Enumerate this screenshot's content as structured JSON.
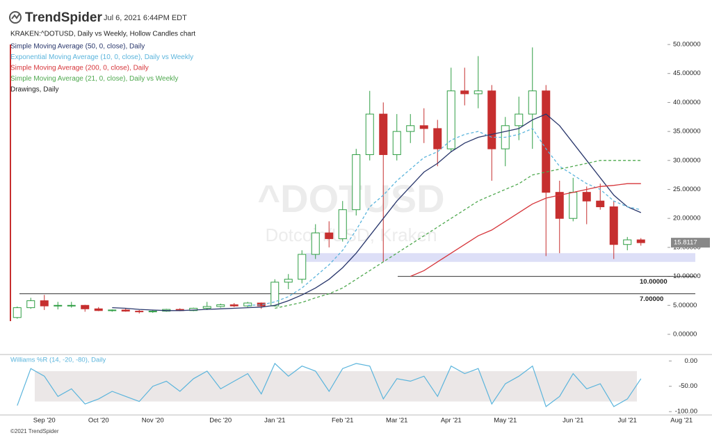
{
  "header": {
    "brand": "TrendSpider",
    "timestamp": "Jul 6, 2021 6:44PM EDT",
    "footer": "©2021 TrendSpider"
  },
  "chart_data": {
    "type": "candlestick",
    "title": "KRAKEN:^DOTUSD, Daily vs Weekly, Hollow Candles chart",
    "watermark": "^DOTUSD",
    "watermark_subtitle": "Dotcoin/USD, Kraken",
    "categories": [
      null,
      null,
      "Sep '20",
      null,
      null,
      null,
      "Oct '20",
      null,
      null,
      null,
      "Nov '20",
      null,
      null,
      null,
      null,
      "Dec '20",
      null,
      null,
      null,
      "Jan '21",
      null,
      null,
      null,
      null,
      "Feb '21",
      null,
      null,
      null,
      "Mar '21",
      null,
      null,
      null,
      "Apr '21",
      null,
      null,
      null,
      "May '21",
      null,
      null,
      null,
      null,
      "Jun '21",
      null,
      null,
      null,
      "Jul '21",
      null,
      null,
      null,
      "Aug '21"
    ],
    "open": [
      2.9,
      4.6,
      5.8,
      4.9,
      5.0,
      5.0,
      4.4,
      4.1,
      4.2,
      4.0,
      3.9,
      4.0,
      4.3,
      4.1,
      4.5,
      4.8,
      5.1,
      4.9,
      5.4,
      4.9,
      9.0,
      9.5,
      13.8,
      17.5,
      16.5,
      21.5,
      31.0,
      38.0,
      31.0,
      35.0,
      36.0,
      35.5,
      32.0,
      42.0,
      41.5,
      42.0,
      32.0,
      36.0,
      38.0,
      42.0,
      24.5,
      20.0,
      24.5,
      23.0,
      22.0,
      15.5,
      16.3,
      null,
      null,
      null
    ],
    "high": [
      4.8,
      6.3,
      6.8,
      5.6,
      5.6,
      5.1,
      4.7,
      4.3,
      4.5,
      4.2,
      4.2,
      4.4,
      4.5,
      4.6,
      5.6,
      5.3,
      5.4,
      5.6,
      5.5,
      9.5,
      10.4,
      14.5,
      19.0,
      19.5,
      23.0,
      32.0,
      42.0,
      40.0,
      38.0,
      38.0,
      39.0,
      37.0,
      46.0,
      46.0,
      48.0,
      43.0,
      37.5,
      41.0,
      49.5,
      43.0,
      26.5,
      27.0,
      25.5,
      26.0,
      23.0,
      16.8,
      16.6,
      null,
      null,
      null
    ],
    "low": [
      2.7,
      4.4,
      4.2,
      4.3,
      4.6,
      3.9,
      4.0,
      3.9,
      3.9,
      3.6,
      3.7,
      3.9,
      4.0,
      4.0,
      4.2,
      4.6,
      4.7,
      4.7,
      4.4,
      4.8,
      7.8,
      8.8,
      13.0,
      15.0,
      16.0,
      20.5,
      30.0,
      12.5,
      30.0,
      33.0,
      33.0,
      29.0,
      31.5,
      39.5,
      39.0,
      26.5,
      29.0,
      33.5,
      32.0,
      13.5,
      14.0,
      19.5,
      19.0,
      21.5,
      13.0,
      14.5,
      15.3,
      null,
      null,
      null
    ],
    "close": [
      4.6,
      5.8,
      4.9,
      5.0,
      5.0,
      4.4,
      4.1,
      4.2,
      4.0,
      3.9,
      4.0,
      4.3,
      4.1,
      4.5,
      4.8,
      5.1,
      4.9,
      5.4,
      4.9,
      9.0,
      9.5,
      13.8,
      17.5,
      16.5,
      21.5,
      31.0,
      38.0,
      31.0,
      35.0,
      36.0,
      35.5,
      32.0,
      42.0,
      41.5,
      42.0,
      32.0,
      36.0,
      38.0,
      42.0,
      24.5,
      20.0,
      24.5,
      23.0,
      22.0,
      15.5,
      16.3,
      15.81,
      null,
      null,
      null
    ],
    "up_color": "#2f9e44",
    "down_color": "#c62f2f",
    "overlays": [
      {
        "name": "Simple Moving Average (50, 0, close), Daily",
        "color": "#28366b",
        "dashed": false,
        "values": [
          null,
          null,
          null,
          null,
          null,
          null,
          null,
          4.6,
          4.5,
          4.3,
          4.2,
          4.1,
          4.1,
          4.2,
          4.3,
          4.4,
          4.5,
          4.6,
          4.7,
          5.0,
          5.8,
          6.8,
          8.0,
          9.5,
          11.5,
          14,
          17,
          20,
          23,
          25.5,
          28,
          29.5,
          31.5,
          33,
          34,
          34.5,
          35,
          35.5,
          37,
          38,
          36,
          33,
          30,
          27,
          24,
          22,
          21,
          null,
          null,
          null
        ]
      },
      {
        "name": "Exponential Moving Average (10, 0, close), Daily vs Weekly",
        "color": "#5ab4dc",
        "dashed": true,
        "values": [
          null,
          null,
          null,
          null,
          null,
          null,
          null,
          null,
          null,
          null,
          null,
          null,
          null,
          null,
          null,
          null,
          null,
          5.0,
          5.1,
          5.6,
          6.5,
          8,
          10,
          12,
          14.5,
          18,
          22,
          24,
          26.5,
          28.5,
          30.5,
          31.5,
          33.5,
          34.5,
          35,
          34,
          34,
          34.5,
          35.5,
          32,
          29,
          27.5,
          26,
          25,
          23,
          22,
          21.5,
          null,
          null,
          null
        ]
      },
      {
        "name": "Simple Moving Average (200, 0, close), Daily",
        "color": "#d6353a",
        "dashed": false,
        "values": [
          null,
          null,
          null,
          null,
          null,
          null,
          null,
          null,
          null,
          null,
          null,
          null,
          null,
          null,
          null,
          null,
          null,
          null,
          null,
          null,
          null,
          null,
          null,
          null,
          null,
          null,
          null,
          null,
          null,
          10,
          11,
          12.5,
          14,
          15.5,
          17,
          18,
          19.5,
          21,
          22.5,
          23.5,
          24,
          24.5,
          25,
          25.5,
          25.7,
          26,
          26,
          null,
          null,
          null
        ]
      },
      {
        "name": "Simple Moving Average (21, 0, close), Daily vs Weekly",
        "color": "#4ea84e",
        "dashed": true,
        "values": [
          null,
          null,
          null,
          null,
          null,
          null,
          null,
          null,
          null,
          null,
          null,
          null,
          null,
          null,
          null,
          null,
          null,
          null,
          null,
          4.5,
          5.0,
          5.5,
          6.3,
          7,
          8,
          9.5,
          11,
          12.5,
          14,
          15.5,
          17,
          18.5,
          20,
          21.5,
          23,
          24,
          25,
          26,
          27.5,
          28,
          28.5,
          29,
          29.5,
          30,
          30,
          30,
          30,
          null,
          null,
          null
        ]
      }
    ],
    "legend_extra": "Drawings, Daily",
    "levels": [
      {
        "value": 10,
        "label": "10.00000"
      },
      {
        "value": 7,
        "label": "7.00000"
      }
    ],
    "zone": [
      12.5,
      14
    ],
    "last_price": 15.8117,
    "ylim": [
      -3,
      56
    ],
    "yticks": [
      {
        "value": 0,
        "label": "0.00000"
      },
      {
        "value": 5,
        "label": "5.00000"
      },
      {
        "value": 10,
        "label": "10.00000"
      },
      {
        "value": 15,
        "label": "15.00000"
      },
      {
        "value": 20,
        "label": "20.00000"
      },
      {
        "value": 25,
        "label": "25.00000"
      },
      {
        "value": 30,
        "label": "30.00000"
      },
      {
        "value": 35,
        "label": "35.00000"
      },
      {
        "value": 40,
        "label": "40.00000"
      },
      {
        "value": 45,
        "label": "45.00000"
      },
      {
        "value": 50,
        "label": "50.00000"
      }
    ],
    "oscillator": {
      "type": "line",
      "title": "Williams %R (14, -20, -80), Daily",
      "color": "#5ab4dc",
      "band": [
        -80,
        -20
      ],
      "values": [
        -88,
        -15,
        -30,
        -70,
        -55,
        -85,
        -75,
        -60,
        -70,
        -80,
        -50,
        -40,
        -60,
        -35,
        -20,
        -55,
        -40,
        -25,
        -65,
        -5,
        -30,
        -10,
        -20,
        -60,
        -15,
        -5,
        -10,
        -75,
        -35,
        -40,
        -30,
        -70,
        -10,
        -25,
        -15,
        -85,
        -45,
        -30,
        -10,
        -90,
        -70,
        -25,
        -55,
        -45,
        -90,
        -75,
        -35,
        null,
        null,
        null
      ],
      "ylim": [
        -108,
        10
      ],
      "yticks": [
        {
          "value": 0,
          "label": "0.00"
        },
        {
          "value": -50,
          "label": "-50.00"
        },
        {
          "value": -100,
          "label": "-100.00"
        }
      ]
    }
  }
}
